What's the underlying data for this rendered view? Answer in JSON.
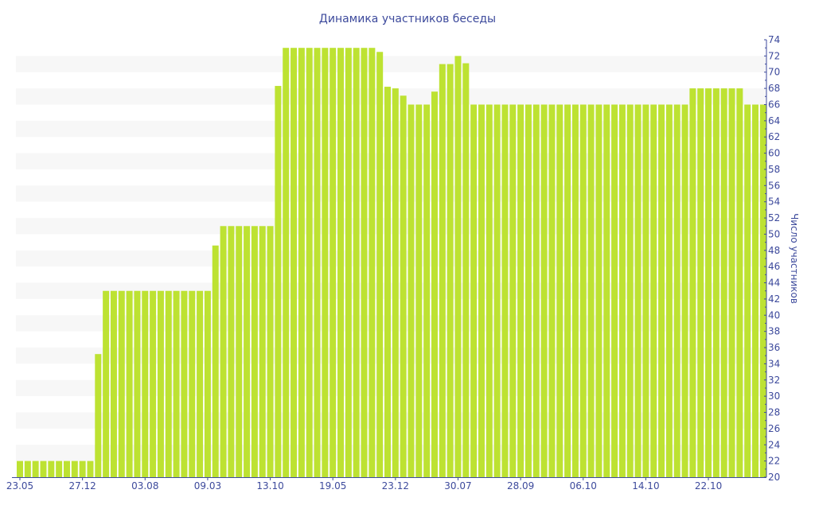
{
  "chart_data": {
    "type": "bar",
    "title": "Динамика участников беседы",
    "xlabel": "",
    "ylabel": "Число участников",
    "ylim": [
      20,
      74
    ],
    "ytick_step": 2,
    "grid": "alternating horizontal bands",
    "y_axis_side": "right",
    "bar_color": "#bde232",
    "text_color": "#3d4a9c",
    "band_color": "#f7f7f7",
    "x_tick_labels": [
      {
        "index": 0,
        "label": "23.05"
      },
      {
        "index": 8,
        "label": "27.12"
      },
      {
        "index": 16,
        "label": "03.08"
      },
      {
        "index": 24,
        "label": "09.03"
      },
      {
        "index": 32,
        "label": "13.10"
      },
      {
        "index": 40,
        "label": "19.05"
      },
      {
        "index": 48,
        "label": "23.12"
      },
      {
        "index": 56,
        "label": "30.07"
      },
      {
        "index": 64,
        "label": "28.09"
      },
      {
        "index": 72,
        "label": "06.10"
      },
      {
        "index": 80,
        "label": "14.10"
      },
      {
        "index": 88,
        "label": "22.10"
      }
    ],
    "values": [
      22,
      22,
      22,
      22,
      22,
      22,
      22,
      22,
      22,
      22,
      35.2,
      43,
      43,
      43,
      43,
      43,
      43,
      43,
      43,
      43,
      43,
      43,
      43,
      43,
      43,
      48.6,
      51,
      51,
      51,
      51,
      51,
      51,
      51,
      68.3,
      73,
      73,
      73,
      73,
      73,
      73,
      73,
      73,
      73,
      73,
      73,
      73,
      72.5,
      68.2,
      68,
      67.1,
      66,
      66,
      66,
      67.6,
      71,
      71,
      72,
      71.1,
      66,
      66,
      66,
      66,
      66,
      66,
      66,
      66,
      66,
      66,
      66,
      66,
      66,
      66,
      66,
      66,
      66,
      66,
      66,
      66,
      66,
      66,
      66,
      66,
      66,
      66,
      66,
      66,
      68,
      68,
      68,
      68,
      68,
      68,
      68,
      66,
      66,
      66
    ]
  }
}
